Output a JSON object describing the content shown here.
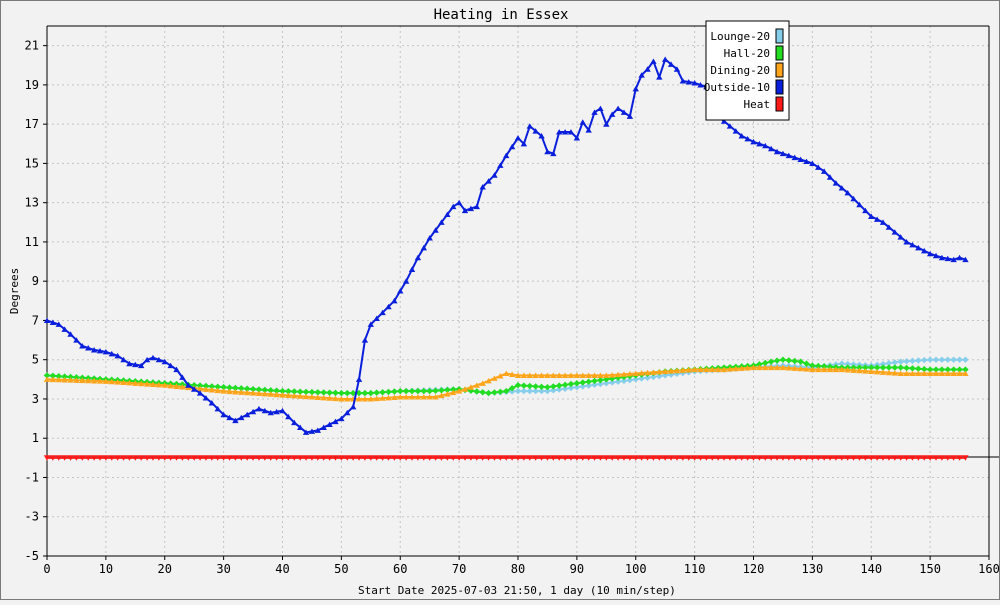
{
  "chart_data": {
    "type": "line",
    "title": "Heating in Essex",
    "xlabel": "Start Date 2025-07-03 21:50, 1 day (10 min/step)",
    "ylabel": "Degrees",
    "xlim": [
      0,
      160
    ],
    "ylim": [
      -5,
      22
    ],
    "x_ticks": [
      0,
      10,
      20,
      30,
      40,
      50,
      60,
      70,
      80,
      90,
      100,
      110,
      120,
      130,
      140,
      150,
      160
    ],
    "y_ticks": [
      -5,
      -3,
      -1,
      1,
      3,
      5,
      7,
      9,
      11,
      13,
      15,
      17,
      19,
      21
    ],
    "grid": true,
    "legend_position": "top-right",
    "series": [
      {
        "name": "Lounge-20",
        "color": "#87ceeb",
        "marker": "diamond",
        "points": [
          [
            0,
            4.2
          ],
          [
            10,
            4.0
          ],
          [
            20,
            3.8
          ],
          [
            25,
            3.7
          ],
          [
            30,
            3.6
          ],
          [
            40,
            3.4
          ],
          [
            50,
            3.3
          ],
          [
            55,
            3.3
          ],
          [
            60,
            3.4
          ],
          [
            70,
            3.5
          ],
          [
            75,
            3.3
          ],
          [
            80,
            3.4
          ],
          [
            85,
            3.4
          ],
          [
            90,
            3.6
          ],
          [
            95,
            3.8
          ],
          [
            100,
            4.0
          ],
          [
            105,
            4.2
          ],
          [
            110,
            4.4
          ],
          [
            115,
            4.5
          ],
          [
            120,
            4.6
          ],
          [
            125,
            4.7
          ],
          [
            130,
            4.6
          ],
          [
            135,
            4.8
          ],
          [
            140,
            4.7
          ],
          [
            145,
            4.9
          ],
          [
            150,
            5.0
          ],
          [
            156,
            5.0
          ]
        ]
      },
      {
        "name": "Hall-20",
        "color": "#22dd22",
        "marker": "diamond",
        "points": [
          [
            0,
            4.2
          ],
          [
            10,
            4.0
          ],
          [
            20,
            3.8
          ],
          [
            25,
            3.7
          ],
          [
            30,
            3.6
          ],
          [
            40,
            3.4
          ],
          [
            50,
            3.3
          ],
          [
            55,
            3.3
          ],
          [
            60,
            3.4
          ],
          [
            65,
            3.4
          ],
          [
            70,
            3.5
          ],
          [
            75,
            3.3
          ],
          [
            78,
            3.4
          ],
          [
            80,
            3.7
          ],
          [
            85,
            3.6
          ],
          [
            90,
            3.8
          ],
          [
            95,
            4.0
          ],
          [
            100,
            4.2
          ],
          [
            105,
            4.4
          ],
          [
            110,
            4.5
          ],
          [
            115,
            4.6
          ],
          [
            120,
            4.7
          ],
          [
            123,
            4.9
          ],
          [
            125,
            5.0
          ],
          [
            128,
            4.9
          ],
          [
            130,
            4.7
          ],
          [
            135,
            4.6
          ],
          [
            140,
            4.6
          ],
          [
            145,
            4.6
          ],
          [
            150,
            4.5
          ],
          [
            156,
            4.5
          ]
        ]
      },
      {
        "name": "Dining-20",
        "color": "#ffa51c",
        "marker": "triangle-up",
        "points": [
          [
            0,
            4.0
          ],
          [
            10,
            3.9
          ],
          [
            20,
            3.7
          ],
          [
            30,
            3.4
          ],
          [
            40,
            3.2
          ],
          [
            50,
            3.0
          ],
          [
            55,
            3.0
          ],
          [
            60,
            3.1
          ],
          [
            66,
            3.1
          ],
          [
            70,
            3.4
          ],
          [
            74,
            3.8
          ],
          [
            78,
            4.3
          ],
          [
            80,
            4.2
          ],
          [
            85,
            4.2
          ],
          [
            90,
            4.2
          ],
          [
            95,
            4.2
          ],
          [
            100,
            4.3
          ],
          [
            105,
            4.4
          ],
          [
            110,
            4.5
          ],
          [
            115,
            4.5
          ],
          [
            120,
            4.6
          ],
          [
            125,
            4.6
          ],
          [
            130,
            4.5
          ],
          [
            135,
            4.5
          ],
          [
            140,
            4.4
          ],
          [
            145,
            4.3
          ],
          [
            150,
            4.3
          ],
          [
            156,
            4.3
          ]
        ]
      },
      {
        "name": "Outside-10",
        "color": "#0a1fdc",
        "marker": "triangle-up",
        "points": [
          [
            0,
            7.0
          ],
          [
            2,
            6.8
          ],
          [
            4,
            6.3
          ],
          [
            6,
            5.7
          ],
          [
            8,
            5.5
          ],
          [
            10,
            5.4
          ],
          [
            12,
            5.2
          ],
          [
            14,
            4.8
          ],
          [
            16,
            4.7
          ],
          [
            17,
            5.0
          ],
          [
            18,
            5.1
          ],
          [
            20,
            4.9
          ],
          [
            22,
            4.5
          ],
          [
            24,
            3.7
          ],
          [
            26,
            3.3
          ],
          [
            28,
            2.8
          ],
          [
            30,
            2.2
          ],
          [
            32,
            1.9
          ],
          [
            34,
            2.2
          ],
          [
            36,
            2.5
          ],
          [
            38,
            2.3
          ],
          [
            40,
            2.4
          ],
          [
            42,
            1.8
          ],
          [
            44,
            1.3
          ],
          [
            46,
            1.4
          ],
          [
            48,
            1.7
          ],
          [
            50,
            2.0
          ],
          [
            52,
            2.6
          ],
          [
            53,
            4.0
          ],
          [
            54,
            6.0
          ],
          [
            55,
            6.8
          ],
          [
            57,
            7.4
          ],
          [
            59,
            8.0
          ],
          [
            61,
            9.0
          ],
          [
            63,
            10.2
          ],
          [
            65,
            11.2
          ],
          [
            67,
            12.0
          ],
          [
            69,
            12.8
          ],
          [
            70,
            13.0
          ],
          [
            71,
            12.6
          ],
          [
            73,
            12.8
          ],
          [
            74,
            13.8
          ],
          [
            76,
            14.4
          ],
          [
            78,
            15.4
          ],
          [
            80,
            16.3
          ],
          [
            81,
            16.0
          ],
          [
            82,
            16.9
          ],
          [
            84,
            16.4
          ],
          [
            85,
            15.6
          ],
          [
            86,
            15.5
          ],
          [
            87,
            16.6
          ],
          [
            89,
            16.6
          ],
          [
            90,
            16.3
          ],
          [
            91,
            17.1
          ],
          [
            92,
            16.7
          ],
          [
            93,
            17.6
          ],
          [
            94,
            17.8
          ],
          [
            95,
            17.0
          ],
          [
            96,
            17.5
          ],
          [
            97,
            17.8
          ],
          [
            99,
            17.4
          ],
          [
            100,
            18.8
          ],
          [
            101,
            19.5
          ],
          [
            102,
            19.8
          ],
          [
            103,
            20.2
          ],
          [
            104,
            19.4
          ],
          [
            105,
            20.3
          ],
          [
            107,
            19.8
          ],
          [
            108,
            19.2
          ],
          [
            110,
            19.1
          ],
          [
            112,
            18.9
          ],
          [
            114,
            17.4
          ],
          [
            116,
            16.9
          ],
          [
            118,
            16.4
          ],
          [
            120,
            16.1
          ],
          [
            122,
            15.9
          ],
          [
            124,
            15.6
          ],
          [
            126,
            15.4
          ],
          [
            128,
            15.2
          ],
          [
            130,
            15.0
          ],
          [
            132,
            14.6
          ],
          [
            134,
            14.0
          ],
          [
            136,
            13.5
          ],
          [
            138,
            12.9
          ],
          [
            140,
            12.3
          ],
          [
            142,
            12.0
          ],
          [
            144,
            11.5
          ],
          [
            146,
            11.0
          ],
          [
            148,
            10.7
          ],
          [
            150,
            10.4
          ],
          [
            152,
            10.2
          ],
          [
            154,
            10.1
          ],
          [
            155,
            10.2
          ],
          [
            156,
            10.1
          ]
        ]
      },
      {
        "name": "Heat",
        "color": "#ff1a1a",
        "marker": "triangle-down",
        "points": [
          [
            0,
            0.0
          ],
          [
            156,
            0.0
          ]
        ]
      }
    ]
  }
}
